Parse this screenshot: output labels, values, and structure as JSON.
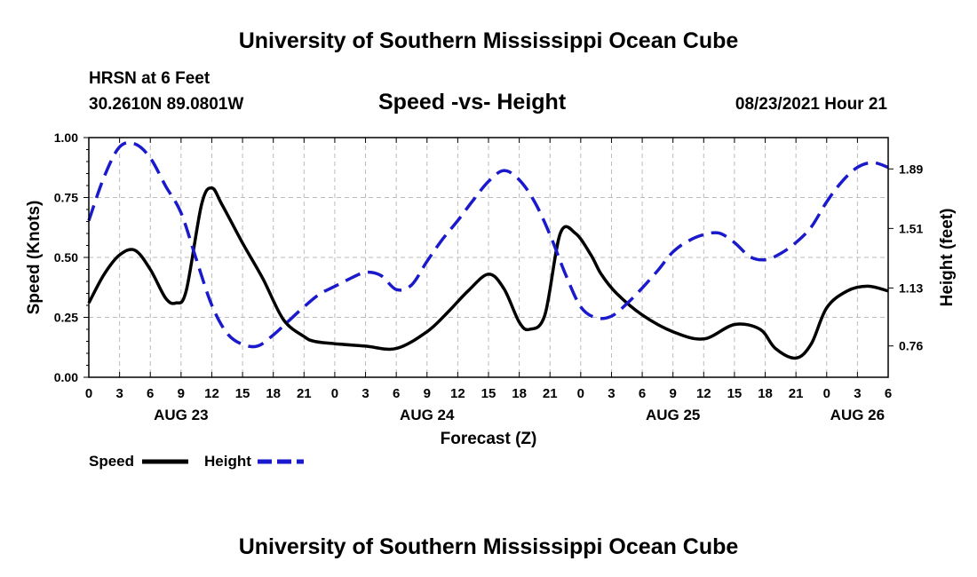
{
  "header": {
    "title_top": "University of Southern Mississippi Ocean Cube",
    "title_bottom": "University of Southern Mississippi Ocean Cube",
    "station": "HRSN at 6 Feet",
    "coordinates": "30.2610N  89.0801W",
    "chart_title": "Speed -vs- Height",
    "datetime": "08/23/2021 Hour 21"
  },
  "legend": {
    "speed_label": "Speed",
    "height_label": "Height"
  },
  "colors": {
    "speed": "#000000",
    "height": "#1a1acc",
    "grid": "#bbbbbb"
  },
  "chart_data": {
    "type": "line",
    "title": "Speed -vs- Height",
    "xlabel": "Forecast (Z)",
    "ylabel": "Speed (Knots)",
    "y2label": "Height (feet)",
    "x_hours_range": [
      0,
      78
    ],
    "ylim": [
      0,
      1
    ],
    "y2lim": [
      0.56,
      2.09
    ],
    "yticks": [
      0,
      0.25,
      0.5,
      0.75,
      1.0
    ],
    "ytick_labels": [
      "0.00",
      "0.25",
      "0.50",
      "0.75",
      "1.00"
    ],
    "y2ticks": [
      0.76,
      1.13,
      1.51,
      1.89
    ],
    "y2tick_labels": [
      "0.76",
      "1.13",
      "1.51",
      "1.89"
    ],
    "xtick_hours": [
      0,
      3,
      6,
      9,
      12,
      15,
      18,
      21,
      24,
      27,
      30,
      33,
      36,
      39,
      42,
      45,
      48,
      51,
      54,
      57,
      60,
      63,
      66,
      69,
      72,
      75,
      78
    ],
    "xtick_labels": [
      "0",
      "3",
      "6",
      "9",
      "12",
      "15",
      "18",
      "21",
      "0",
      "3",
      "6",
      "9",
      "12",
      "15",
      "18",
      "21",
      "0",
      "3",
      "6",
      "9",
      "12",
      "15",
      "18",
      "21",
      "0",
      "3",
      "6"
    ],
    "date_labels": [
      {
        "hour": 9,
        "label": "AUG 23"
      },
      {
        "hour": 33,
        "label": "AUG 24"
      },
      {
        "hour": 57,
        "label": "AUG 25"
      },
      {
        "hour": 75,
        "label": "AUG 26"
      }
    ],
    "series": [
      {
        "name": "Speed",
        "axis": "left",
        "style": "solid",
        "x": [
          0,
          1.5,
          3,
          4.5,
          6,
          7.5,
          8.5,
          9.5,
          11,
          12,
          13,
          15,
          17,
          19,
          21,
          22,
          24,
          27,
          30,
          33,
          35,
          37,
          39,
          40.5,
          42,
          43,
          44.5,
          46,
          47.5,
          49,
          50,
          51.5,
          54,
          57,
          60,
          63,
          65.5,
          67,
          69,
          70.5,
          72,
          74,
          76,
          78
        ],
        "y": [
          0.31,
          0.43,
          0.51,
          0.53,
          0.45,
          0.33,
          0.31,
          0.36,
          0.72,
          0.79,
          0.72,
          0.56,
          0.41,
          0.24,
          0.17,
          0.15,
          0.14,
          0.13,
          0.12,
          0.19,
          0.27,
          0.36,
          0.43,
          0.37,
          0.23,
          0.2,
          0.26,
          0.6,
          0.6,
          0.51,
          0.43,
          0.35,
          0.26,
          0.19,
          0.16,
          0.22,
          0.2,
          0.12,
          0.08,
          0.14,
          0.29,
          0.36,
          0.38,
          0.36
        ]
      },
      {
        "name": "Height",
        "axis": "right",
        "style": "dashed",
        "x": [
          0,
          1.5,
          3,
          4.5,
          6,
          7.5,
          9,
          10.5,
          12,
          13.5,
          15,
          16.5,
          18,
          19.5,
          21,
          22.5,
          24,
          25.5,
          27,
          28.5,
          30,
          31.5,
          33,
          34.5,
          36,
          37.5,
          39,
          40.5,
          42,
          43.5,
          45,
          46.5,
          48,
          49.5,
          51,
          52.5,
          54,
          55.5,
          57,
          58.5,
          60,
          61.5,
          63,
          64.5,
          66,
          67.5,
          69,
          70.5,
          72,
          73.5,
          75,
          76.5,
          78
        ],
        "y": [
          1.56,
          1.84,
          2.03,
          2.05,
          1.96,
          1.78,
          1.61,
          1.31,
          1.02,
          0.84,
          0.77,
          0.76,
          0.83,
          0.92,
          1.01,
          1.09,
          1.14,
          1.19,
          1.23,
          1.21,
          1.12,
          1.15,
          1.3,
          1.44,
          1.56,
          1.69,
          1.81,
          1.88,
          1.82,
          1.68,
          1.47,
          1.22,
          1.01,
          0.94,
          0.95,
          1.03,
          1.13,
          1.24,
          1.36,
          1.43,
          1.47,
          1.48,
          1.42,
          1.33,
          1.31,
          1.35,
          1.42,
          1.52,
          1.68,
          1.81,
          1.9,
          1.93,
          1.9
        ]
      }
    ]
  }
}
